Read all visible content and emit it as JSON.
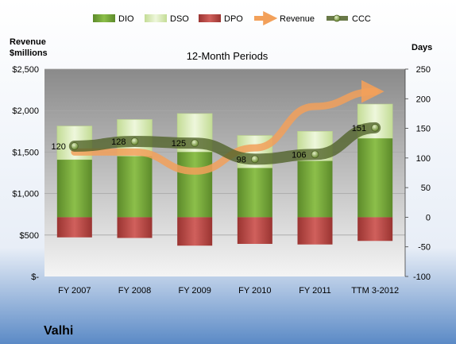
{
  "chart_data": {
    "type": "bar",
    "title": "12-Month Periods",
    "company": "Valhi",
    "left_axis_label_line1": "Revenue",
    "left_axis_label_line2": "$millions",
    "right_axis_label": "Days",
    "categories": [
      "FY 2007",
      "FY 2008",
      "FY 2009",
      "FY 2010",
      "FY 2011",
      "TTM 3-2012"
    ],
    "left_ylim": [
      0,
      2500
    ],
    "left_ticks": [
      0,
      500,
      1000,
      1500,
      2000,
      2500
    ],
    "left_tick_labels": [
      "$-",
      "$500",
      "$1,000",
      "$1,500",
      "$2,000",
      "$2,500"
    ],
    "right_ylim": [
      -100,
      250
    ],
    "right_ticks": [
      -100,
      -50,
      0,
      50,
      100,
      150,
      200,
      250
    ],
    "right_tick_labels": [
      "-100",
      "-50",
      "0",
      "50",
      "100",
      "150",
      "200",
      "250"
    ],
    "legend_position": "top",
    "series": [
      {
        "name": "DIO",
        "kind": "stacked-bar",
        "axis": "right",
        "color": "#6f9a33",
        "values": [
          97,
          103,
          110,
          83,
          95,
          133
        ]
      },
      {
        "name": "DSO",
        "kind": "stacked-bar",
        "axis": "right",
        "color": "#d9ebb5",
        "values": [
          57,
          62,
          65,
          55,
          50,
          58
        ]
      },
      {
        "name": "DPO",
        "kind": "negative-bar",
        "axis": "right",
        "color": "#c0504d",
        "values": [
          -34,
          -35,
          -48,
          -45,
          -46,
          -40
        ]
      },
      {
        "name": "Revenue",
        "kind": "line",
        "axis": "left",
        "color": "#f09a50",
        "values": [
          1500,
          1500,
          1270,
          1550,
          2050,
          2230
        ]
      },
      {
        "name": "CCC",
        "kind": "line",
        "axis": "right",
        "color": "#4f6228",
        "values": [
          120,
          128,
          125,
          98,
          106,
          151
        ],
        "labels": [
          "120",
          "128",
          "125",
          "98",
          "106",
          "151"
        ]
      }
    ],
    "colors": {
      "plot_bg_top": "#8c8c8c",
      "plot_bg_bottom": "#f2f2f2",
      "page_bg_top": "#ffffff",
      "page_bg_bottom": "#4f81bd"
    }
  }
}
